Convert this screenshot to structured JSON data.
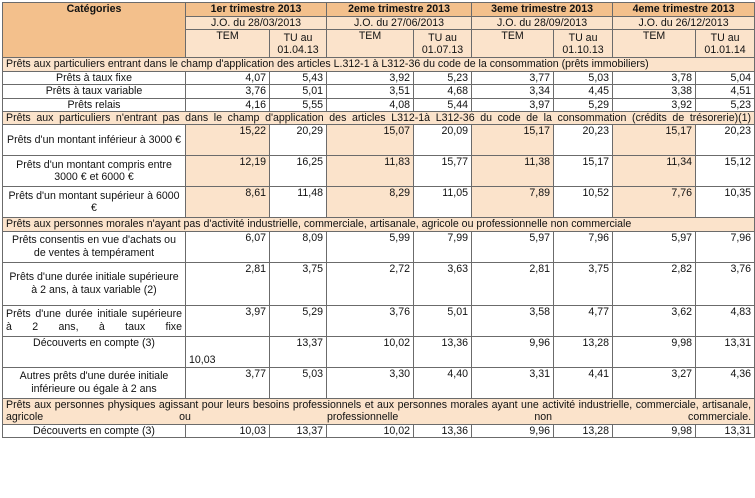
{
  "headers": {
    "categories": "Catégories",
    "quarters": [
      {
        "title": "1er trimestre 2013",
        "jo": "J.O. du 28/03/2013",
        "tem": "TEM",
        "tu": "TU au 01.04.13"
      },
      {
        "title": "2eme trimestre 2013",
        "jo": "J.O. du 27/06/2013",
        "tem": "TEM",
        "tu": "TU au 01.07.13"
      },
      {
        "title": "3eme trimestre 2013",
        "jo": "J.O. du 28/09/2013",
        "tem": "TEM",
        "tu": "TU au 01.10.13"
      },
      {
        "title": "4eme trimestre 2013",
        "jo": "J.O. du 26/12/2013",
        "tem": "TEM",
        "tu": "TU au 01.01.14"
      }
    ]
  },
  "sections": [
    {
      "title": "Prêts aux particuliers entrant dans le champ d'application des articles L.312-1 à  L312-36 du code de la consommation (prêts immobiliers)",
      "rows": [
        {
          "label": "Prêts à  taux fixe",
          "values": [
            "4,07",
            "5,43",
            "3,92",
            "5,23",
            "3,77",
            "5,03",
            "3,78",
            "5,04"
          ]
        },
        {
          "label": "Prêts à  taux variable",
          "values": [
            "3,76",
            "5,01",
            "3,51",
            "4,68",
            "3,34",
            "4,45",
            "3,38",
            "4,51"
          ]
        },
        {
          "label": "Prêts relais",
          "values": [
            "4,16",
            "5,55",
            "4,08",
            "5,44",
            "3,97",
            "5,29",
            "3,92",
            "5,23"
          ]
        }
      ]
    },
    {
      "title": "Prêts aux particuliers n'entrant pas dans le champ d'application des articles L312-1à  L312-36 du code de la consommation (crédits de trésorerie)(1)",
      "rows": [
        {
          "label": "Prêts d'un montant inférieur à 3000 €",
          "values": [
            "15,22",
            "20,29",
            "15,07",
            "20,09",
            "15,17",
            "20,23",
            "15,17",
            "20,23"
          ]
        },
        {
          "label": "Prêts d'un montant compris entre 3000 € et 6000 €",
          "values": [
            "12,19",
            "16,25",
            "11,83",
            "15,77",
            "11,38",
            "15,17",
            "11,34",
            "15,12"
          ]
        },
        {
          "label": "Prêts d'un montant supérieur à 6000 €",
          "values": [
            "8,61",
            "11,48",
            "8,29",
            "11,05",
            "7,89",
            "10,52",
            "7,76",
            "10,35"
          ]
        }
      ]
    },
    {
      "title": "Prêts aux personnes morales n'ayant pas d'activité industrielle, commerciale, artisanale, agricole ou professionnelle non commerciale",
      "rows": [
        {
          "label": "Prêts consentis en vue d'achats ou de ventes à  tempérament",
          "values": [
            "6,07",
            "8,09",
            "5,99",
            "7,99",
            "5,97",
            "7,96",
            "5,97",
            "7,96"
          ]
        },
        {
          "label": "Prêts d'une durée initiale supérieure à  2 ans, à  taux variable (2)",
          "values": [
            "2,81",
            "3,75",
            "2,72",
            "3,63",
            "2,81",
            "3,75",
            "2,82",
            "3,76"
          ]
        },
        {
          "label": "Prêts d'une durée initiale supérieure à  2 ans, à  taux fixe",
          "values": [
            "3,97",
            "5,29",
            "3,76",
            "5,01",
            "3,58",
            "4,77",
            "3,62",
            "4,83"
          ]
        },
        {
          "label": "Découverts en compte (3)",
          "values": [
            "10,03",
            "13,37",
            "10,02",
            "13,36",
            "9,96",
            "13,28",
            "9,98",
            "13,31"
          ]
        },
        {
          "label": "Autres prêts d'une durée initiale inférieure ou égale à  2 ans",
          "values": [
            "3,77",
            "5,03",
            "3,30",
            "4,40",
            "3,31",
            "4,41",
            "3,27",
            "4,36"
          ]
        }
      ]
    },
    {
      "title": "Prêts aux personnes physiques agissant pour leurs besoins professionnels et aux personnes morales ayant une activité industrielle, commerciale, artisanale, agricole ou professionnelle non commerciale.",
      "rows": [
        {
          "label": "Découverts en compte (3)",
          "values": [
            "10,03",
            "13,37",
            "10,02",
            "13,36",
            "9,96",
            "13,28",
            "9,98",
            "13,31"
          ]
        }
      ]
    }
  ],
  "colors": {
    "header": "#f3c08c",
    "subheader": "#fbe3cb",
    "border": "#6b6b6b"
  }
}
